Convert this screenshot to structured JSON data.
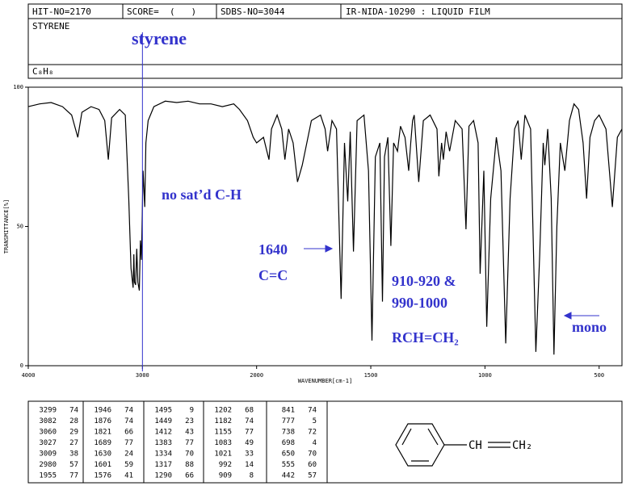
{
  "header": {
    "hit_no": "HIT-NO=2170",
    "score": "SCORE=  (   )",
    "sdbs_no": "SDBS-NO=3044",
    "method": "IR-NIDA-10290 : LIQUID FILM",
    "name": "STYRENE",
    "formula": "C₈H₈"
  },
  "chart_data": {
    "type": "line",
    "xlabel": "WAVENUMBER[cm-1]",
    "ylabel": "TRANSMITTANCE[%]",
    "xlim": [
      4000,
      400
    ],
    "xticks": [
      4000,
      3000,
      2000,
      1500,
      1000,
      500
    ],
    "ylim": [
      0,
      100
    ],
    "yticks": [
      0,
      50,
      100
    ],
    "x": [
      4000,
      3900,
      3800,
      3700,
      3620,
      3566,
      3530,
      3450,
      3380,
      3330,
      3299,
      3270,
      3200,
      3150,
      3120,
      3100,
      3082,
      3075,
      3070,
      3060,
      3050,
      3040,
      3027,
      3018,
      3009,
      2995,
      2980,
      2970,
      2950,
      2900,
      2800,
      2700,
      2600,
      2500,
      2400,
      2300,
      2200,
      2150,
      2080,
      2030,
      2000,
      1970,
      1955,
      1946,
      1935,
      1910,
      1890,
      1876,
      1860,
      1840,
      1821,
      1800,
      1760,
      1720,
      1700,
      1689,
      1670,
      1650,
      1630,
      1615,
      1601,
      1590,
      1576,
      1560,
      1530,
      1510,
      1495,
      1480,
      1460,
      1449,
      1440,
      1425,
      1412,
      1400,
      1383,
      1370,
      1350,
      1334,
      1325,
      1317,
      1310,
      1290,
      1270,
      1240,
      1210,
      1202,
      1190,
      1182,
      1170,
      1155,
      1130,
      1100,
      1083,
      1070,
      1050,
      1030,
      1021,
      1005,
      992,
      975,
      950,
      930,
      909,
      890,
      870,
      855,
      841,
      825,
      800,
      777,
      760,
      745,
      738,
      725,
      710,
      698,
      685,
      670,
      650,
      630,
      610,
      590,
      570,
      555,
      540,
      520,
      500,
      470,
      442,
      420,
      400
    ],
    "series": [
      {
        "name": "styrene",
        "color": "#000000",
        "values": [
          93,
          94,
          94.5,
          93,
          90,
          82,
          91,
          93,
          92,
          88,
          74,
          89,
          92,
          90,
          60,
          35,
          28,
          40,
          30,
          29,
          42,
          30,
          27,
          45,
          38,
          70,
          57,
          80,
          88,
          93,
          95,
          94.5,
          95,
          94,
          94,
          93,
          94,
          92,
          88,
          82,
          80,
          82,
          77,
          74,
          85,
          90,
          85,
          74,
          85,
          80,
          66,
          72,
          88,
          90,
          85,
          77,
          88,
          85,
          24,
          80,
          59,
          84,
          41,
          88,
          90,
          70,
          9,
          75,
          80,
          23,
          75,
          82,
          43,
          80,
          77,
          86,
          82,
          70,
          80,
          88,
          90,
          66,
          88,
          90,
          85,
          68,
          80,
          74,
          84,
          77,
          88,
          85,
          49,
          86,
          88,
          80,
          33,
          70,
          14,
          60,
          82,
          70,
          8,
          60,
          85,
          88,
          74,
          90,
          85,
          5,
          40,
          80,
          72,
          85,
          60,
          4,
          50,
          80,
          70,
          88,
          94,
          92,
          80,
          60,
          82,
          88,
          90,
          85,
          57,
          82,
          85
        ]
      }
    ],
    "reference_x": 3000,
    "annotations": [
      "styrene",
      "no sat’d C-H",
      "1640",
      "C=C",
      "910-920 &",
      "990-1000",
      "RCH=CH₂",
      "mono"
    ]
  },
  "peak_table": {
    "columns": [
      [
        [
          "3299",
          "74"
        ],
        [
          "3082",
          "28"
        ],
        [
          "3060",
          "29"
        ],
        [
          "3027",
          "27"
        ],
        [
          "3009",
          "38"
        ],
        [
          "2980",
          "57"
        ],
        [
          "1955",
          "77"
        ]
      ],
      [
        [
          "1946",
          "74"
        ],
        [
          "1876",
          "74"
        ],
        [
          "1821",
          "66"
        ],
        [
          "1689",
          "77"
        ],
        [
          "1630",
          "24"
        ],
        [
          "1601",
          "59"
        ],
        [
          "1576",
          "41"
        ]
      ],
      [
        [
          "1495",
          "9"
        ],
        [
          "1449",
          "23"
        ],
        [
          "1412",
          "43"
        ],
        [
          "1383",
          "77"
        ],
        [
          "1334",
          "70"
        ],
        [
          "1317",
          "88"
        ],
        [
          "1290",
          "66"
        ]
      ],
      [
        [
          "1202",
          "68"
        ],
        [
          "1182",
          "74"
        ],
        [
          "1155",
          "77"
        ],
        [
          "1083",
          "49"
        ],
        [
          "1021",
          "33"
        ],
        [
          "992",
          "14"
        ],
        [
          "909",
          "8"
        ]
      ],
      [
        [
          "841",
          "74"
        ],
        [
          "777",
          "5"
        ],
        [
          "738",
          "72"
        ],
        [
          "698",
          "4"
        ],
        [
          "650",
          "70"
        ],
        [
          "555",
          "60"
        ],
        [
          "442",
          "57"
        ]
      ]
    ]
  },
  "structure": {
    "labels": [
      "CH",
      "CH₂"
    ]
  }
}
